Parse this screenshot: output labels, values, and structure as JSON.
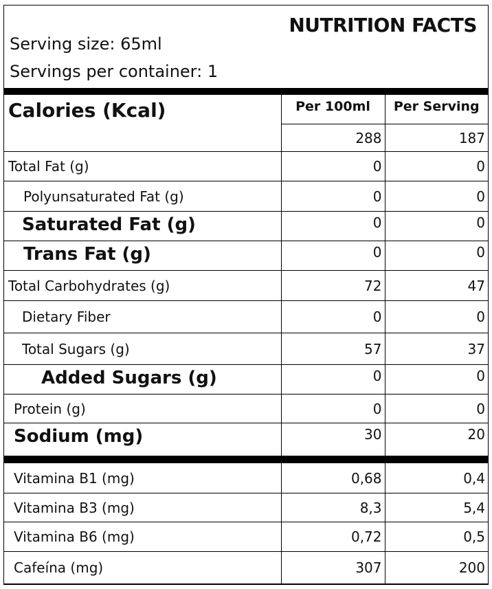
{
  "header": {
    "title": "NUTRITION FACTS",
    "serving_size": "Serving size: 65ml",
    "servings_per_container": "Servings per container: 1"
  },
  "table": {
    "label": "Calories (Kcal)",
    "columns": [
      "Per 100ml",
      "Per Serving"
    ],
    "calories": [
      "288",
      "187"
    ],
    "rows": [
      [
        "Total Fat (g)",
        "0",
        "0"
      ],
      [
        "Polyunsaturated Fat (g)",
        "0",
        "0"
      ],
      [
        "Saturated Fat (g)",
        "0",
        "0"
      ],
      [
        "Trans Fat (g)",
        "0",
        "0"
      ],
      [
        "Total Carbohydrates (g)",
        "72",
        "47"
      ],
      [
        "Dietary Fiber",
        "0",
        "0"
      ],
      [
        "Total Sugars (g)",
        "57",
        "37"
      ],
      [
        "Added Sugars (g)",
        "0",
        "0"
      ],
      [
        "Protein (g)",
        "0",
        "0"
      ],
      [
        "Sodium (mg)",
        "30",
        "20"
      ]
    ],
    "vitamins": [
      [
        "Vitamina B1 (mg)",
        "0,68",
        "0,4"
      ],
      [
        "Vitamina B3 (mg)",
        "8,3",
        "5,4"
      ],
      [
        "Vitamina B6 (mg)",
        "0,72",
        "0,5"
      ],
      [
        "Cafeína (mg)",
        "307",
        "200"
      ]
    ]
  }
}
